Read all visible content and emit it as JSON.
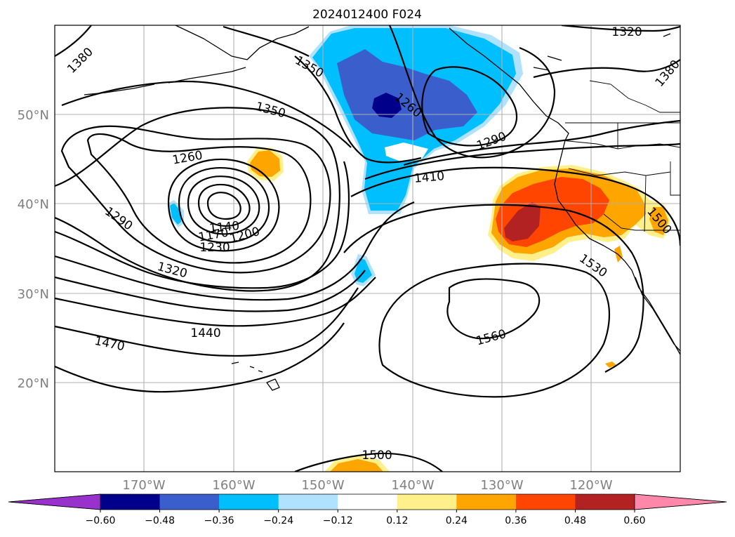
{
  "title": "2024012400 F024",
  "lat_labels": [
    "50°N",
    "40°N",
    "30°N",
    "20°N"
  ],
  "lon_labels": [
    "170°W",
    "160°W",
    "150°W",
    "140°W",
    "130°W",
    "120°W"
  ],
  "colorbar": {
    "ticks": [
      "−0.60",
      "−0.48",
      "−0.36",
      "−0.24",
      "−0.12",
      "0.12",
      "0.24",
      "0.36",
      "0.48",
      "0.60"
    ],
    "colors": [
      "#9932cc",
      "#00008b",
      "#3a5fcd",
      "#00bfff",
      "#b0e2ff",
      "#ffffff",
      "#fff08a",
      "#ffa500",
      "#ff4500",
      "#b22222",
      "#ff88aa"
    ]
  },
  "contour_labels": [
    "1380",
    "1350",
    "1320",
    "1350",
    "1260",
    "1290",
    "1140",
    "1170",
    "1200",
    "1230",
    "1320",
    "1440",
    "1470",
    "1410",
    "1290",
    "1260",
    "1500",
    "1530",
    "1560",
    "1500",
    "1380"
  ],
  "shading_colors": {
    "light_blue": "#b0e2ff",
    "blue": "#00bfff",
    "medium_blue": "#3a5fcd",
    "dark_blue": "#00008b",
    "yellow": "#fff08a",
    "orange": "#ffa500",
    "red_orange": "#ff4500",
    "dark_red": "#b22222"
  }
}
